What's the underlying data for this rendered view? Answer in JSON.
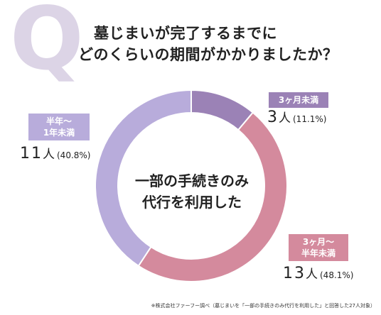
{
  "question": {
    "q_mark": "Q",
    "line1": "墓じまいが完了するまでに",
    "line2": "どのくらいの期間がかかりましたか？"
  },
  "center_label": {
    "line1": "一部の手続きのみ",
    "line2": "代行を利用した"
  },
  "labels": [
    {
      "badge_lines": [
        "3ヶ月未満"
      ],
      "count": "3",
      "unit": "人",
      "percent": "(11.1%)"
    },
    {
      "badge_lines": [
        "3ヶ月〜",
        "半年未満"
      ],
      "count": "13",
      "unit": "人",
      "percent": "(48.1%)"
    },
    {
      "badge_lines": [
        "半年〜",
        "1年未満"
      ],
      "count": "11",
      "unit": "人",
      "percent": "(40.8%)"
    }
  ],
  "footnote": "※株式会社ファーフー調べ（墓じまいを「一部の手続きのみ代行を利用した」と回答した27人対象）",
  "chart_data": {
    "type": "pie",
    "style": "donut",
    "categories": [
      "3ヶ月未満",
      "3ヶ月〜半年未満",
      "半年〜1年未満"
    ],
    "values": [
      3,
      13,
      11
    ],
    "percentages": [
      11.1,
      48.1,
      40.8
    ],
    "colors": [
      "#9b82b6",
      "#d48a9d",
      "#b8acdb"
    ],
    "start_angle": "top, clockwise"
  }
}
